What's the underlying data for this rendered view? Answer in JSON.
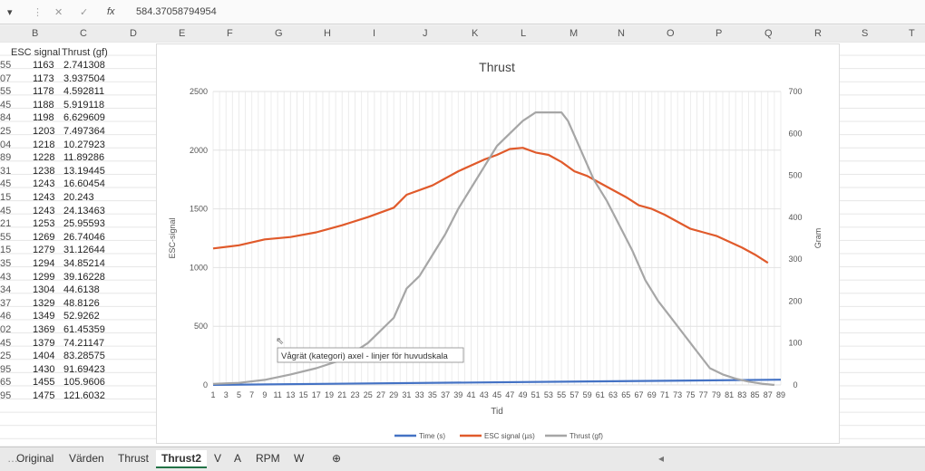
{
  "formula_bar": {
    "fx_label": "fx",
    "value": "584.37058794954"
  },
  "column_headers": [
    "B",
    "C",
    "D",
    "E",
    "F",
    "G",
    "H",
    "I",
    "J",
    "K",
    "L",
    "M",
    "N",
    "O",
    "P",
    "Q",
    "R",
    "S",
    "T"
  ],
  "sheet": {
    "header": {
      "b": "ESC signal",
      "c": "Thrust (gf)"
    },
    "row_prefixes": [
      "55",
      "07",
      "55",
      "45",
      "84",
      "25",
      "04",
      "89",
      "31",
      "45",
      "15",
      "45",
      "21",
      "55",
      "15",
      "35",
      "43",
      "34",
      "37",
      "46",
      "02",
      "45",
      "25",
      "95",
      "65",
      "95"
    ],
    "rows": [
      [
        "1163",
        "2.741308"
      ],
      [
        "1173",
        "3.937504"
      ],
      [
        "1178",
        "4.592811"
      ],
      [
        "1188",
        "5.919118"
      ],
      [
        "1198",
        "6.629609"
      ],
      [
        "1203",
        "7.497364"
      ],
      [
        "1218",
        "10.27923"
      ],
      [
        "1228",
        "11.89286"
      ],
      [
        "1238",
        "13.19445"
      ],
      [
        "1243",
        "16.60454"
      ],
      [
        "1243",
        "20.243"
      ],
      [
        "1243",
        "24.13463"
      ],
      [
        "1253",
        "25.95593"
      ],
      [
        "1269",
        "26.74046"
      ],
      [
        "1279",
        "31.12644"
      ],
      [
        "1294",
        "34.85214"
      ],
      [
        "1299",
        "39.16228"
      ],
      [
        "1304",
        "44.6138"
      ],
      [
        "1329",
        "48.8126"
      ],
      [
        "1349",
        "52.9262"
      ],
      [
        "1369",
        "61.45359"
      ],
      [
        "1379",
        "74.21147"
      ],
      [
        "1404",
        "83.28575"
      ],
      [
        "1430",
        "91.69423"
      ],
      [
        "1455",
        "105.9606"
      ],
      [
        "1475",
        "121.6032"
      ]
    ]
  },
  "tabs": [
    "Original",
    "Värden",
    "Thrust",
    "Thrust2",
    "V",
    "A",
    "RPM",
    "W"
  ],
  "active_tab": "Thrust2",
  "tooltip": "Vågrät (kategori) axel - linjer för huvudskala",
  "chart_data": {
    "type": "line",
    "title": "Thrust",
    "xlabel": "Tid",
    "ylabel": "ESC-signal",
    "y2label": "Gram",
    "ylim": [
      0,
      2500
    ],
    "y2lim": [
      0,
      700
    ],
    "yticks": [
      0,
      500,
      1000,
      1500,
      2000,
      2500
    ],
    "y2ticks": [
      0,
      100,
      200,
      300,
      400,
      500,
      600,
      700
    ],
    "x_range": [
      1,
      89
    ],
    "xticks": [
      1,
      3,
      5,
      7,
      9,
      11,
      13,
      15,
      17,
      19,
      21,
      23,
      25,
      27,
      29,
      31,
      33,
      35,
      37,
      39,
      41,
      43,
      45,
      47,
      49,
      51,
      53,
      55,
      57,
      59,
      61,
      63,
      65,
      67,
      69,
      71,
      73,
      75,
      77,
      79,
      81,
      83,
      85,
      87,
      89
    ],
    "grid": true,
    "legend_position": "bottom",
    "series": [
      {
        "name": "Time (s)",
        "color": "#4472c4",
        "axis": "left",
        "points": [
          [
            1,
            1
          ],
          [
            89,
            45
          ]
        ]
      },
      {
        "name": "ESC signal (µs)",
        "color": "#e05a2b",
        "axis": "left",
        "points": [
          [
            1,
            1163
          ],
          [
            5,
            1190
          ],
          [
            9,
            1240
          ],
          [
            13,
            1260
          ],
          [
            17,
            1300
          ],
          [
            21,
            1360
          ],
          [
            25,
            1430
          ],
          [
            29,
            1510
          ],
          [
            31,
            1620
          ],
          [
            35,
            1700
          ],
          [
            39,
            1820
          ],
          [
            43,
            1920
          ],
          [
            45,
            1960
          ],
          [
            47,
            2010
          ],
          [
            49,
            2020
          ],
          [
            51,
            1980
          ],
          [
            53,
            1960
          ],
          [
            55,
            1900
          ],
          [
            57,
            1820
          ],
          [
            59,
            1780
          ],
          [
            61,
            1720
          ],
          [
            63,
            1660
          ],
          [
            65,
            1600
          ],
          [
            67,
            1530
          ],
          [
            69,
            1500
          ],
          [
            71,
            1450
          ],
          [
            73,
            1390
          ],
          [
            75,
            1330
          ],
          [
            77,
            1300
          ],
          [
            79,
            1270
          ],
          [
            81,
            1220
          ],
          [
            83,
            1170
          ],
          [
            85,
            1110
          ],
          [
            87,
            1040
          ]
        ]
      },
      {
        "name": "Thrust (gf)",
        "color": "#a6a6a6",
        "axis": "right",
        "points": [
          [
            1,
            2.7
          ],
          [
            5,
            5
          ],
          [
            9,
            12
          ],
          [
            13,
            25
          ],
          [
            17,
            40
          ],
          [
            21,
            60
          ],
          [
            23,
            80
          ],
          [
            25,
            100
          ],
          [
            29,
            160
          ],
          [
            31,
            230
          ],
          [
            33,
            260
          ],
          [
            35,
            310
          ],
          [
            37,
            360
          ],
          [
            39,
            420
          ],
          [
            41,
            470
          ],
          [
            43,
            520
          ],
          [
            45,
            570
          ],
          [
            47,
            600
          ],
          [
            49,
            630
          ],
          [
            51,
            650
          ],
          [
            53,
            650
          ],
          [
            55,
            650
          ],
          [
            56,
            630
          ],
          [
            58,
            560
          ],
          [
            60,
            490
          ],
          [
            62,
            440
          ],
          [
            64,
            380
          ],
          [
            66,
            320
          ],
          [
            68,
            250
          ],
          [
            70,
            200
          ],
          [
            72,
            160
          ],
          [
            74,
            120
          ],
          [
            76,
            80
          ],
          [
            78,
            40
          ],
          [
            80,
            25
          ],
          [
            82,
            15
          ],
          [
            84,
            8
          ],
          [
            86,
            3
          ],
          [
            88,
            0
          ]
        ]
      }
    ]
  }
}
